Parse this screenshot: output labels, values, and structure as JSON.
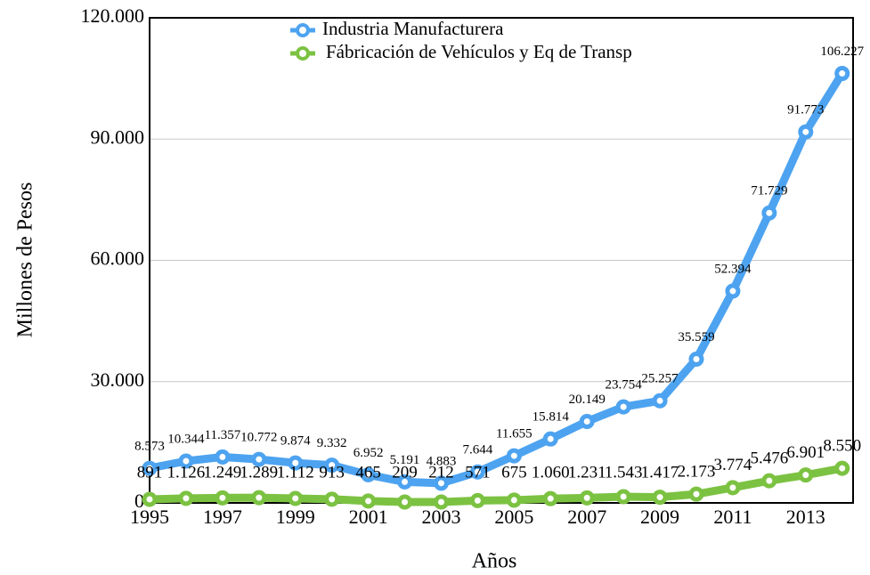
{
  "chart_data": {
    "type": "line",
    "x_label": "Años",
    "y_label": "Millones de Pesos",
    "x": [
      1995,
      1996,
      1997,
      1998,
      1999,
      2000,
      2001,
      2002,
      2003,
      2004,
      2005,
      2006,
      2007,
      2008,
      2009,
      2010,
      2011,
      2012,
      2013,
      2014
    ],
    "xlim": [
      1995,
      2014.3
    ],
    "xticks": [
      1995,
      1997,
      1999,
      2001,
      2003,
      2005,
      2007,
      2009,
      2011,
      2013
    ],
    "ylim": [
      0,
      120000
    ],
    "yticks": [
      0,
      {
        "value": 30000,
        "label": "30.000"
      },
      {
        "value": 60000,
        "label": "60.000"
      },
      {
        "value": 90000,
        "label": "90.000"
      },
      {
        "value": 120000,
        "label": "120.000"
      }
    ],
    "grid": true,
    "legend": "top",
    "series": [
      {
        "name": "Industria Manufacturera",
        "color": "#4da3f0",
        "values": [
          8573,
          10344,
          11357,
          10772,
          9874,
          9332,
          6952,
          5191,
          4883,
          7644,
          11655,
          15814,
          20149,
          23754,
          25257,
          35559,
          52394,
          71729,
          91773,
          106227
        ],
        "value_labels": [
          "8.573",
          "10.344",
          "11.357",
          "10.772",
          "9.874",
          "9.332",
          "6.952",
          "5.191",
          "4.883",
          "7.644",
          "11.655",
          "15.814",
          "20.149",
          "23.754",
          "25.257",
          "35.559",
          "52.394",
          "71.729",
          "91.773",
          "106.227"
        ]
      },
      {
        "name": "Fábricación de Vehículos y Eq de Transp",
        "color": "#7cc242",
        "values": [
          891,
          1126,
          1249,
          1289,
          1112,
          913,
          465,
          209,
          212,
          571,
          675,
          1060,
          1231,
          1543,
          1417,
          2173,
          3774,
          5476,
          6901,
          8550
        ],
        "value_labels": [
          "891",
          "1.126",
          "1.249",
          "1.289",
          "1.112",
          "913",
          "465",
          "209",
          "212",
          "571",
          "675",
          "1.060",
          "1.231",
          "1.543",
          "1.417",
          "2.173",
          "3.774",
          "5.476",
          "6.901",
          "8.550"
        ]
      }
    ]
  }
}
